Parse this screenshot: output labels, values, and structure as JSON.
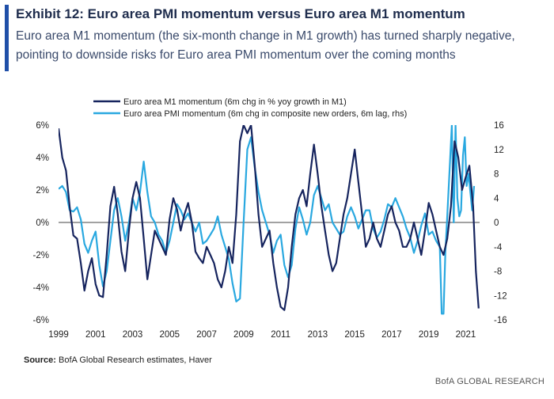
{
  "header": {
    "title": "Exhibit 12: Euro area PMI momentum versus Euro area M1 momentum",
    "subtitle": "Euro area M1 momentum (the six-month change in M1 growth) has turned sharply negative, pointing to downside risks for Euro area PMI momentum over the coming months",
    "accent_color": "#1f4fa8"
  },
  "footer": {
    "source_label": "Source:",
    "source_text": "BofA Global Research estimates, Haver",
    "brand": "BofA GLOBAL RESEARCH"
  },
  "chart_data": {
    "type": "line",
    "x_tick_labels": [
      "1999",
      "2001",
      "2003",
      "2005",
      "2007",
      "2009",
      "2011",
      "2013",
      "2015",
      "2017",
      "2019",
      "2021"
    ],
    "y_left": {
      "ticks": [
        -6,
        -4,
        -2,
        0,
        2,
        4,
        6
      ],
      "tick_labels": [
        "-6%",
        "-4%",
        "-2%",
        "0%",
        "2%",
        "4%",
        "6%"
      ],
      "range": [
        -6,
        6
      ]
    },
    "y_right": {
      "ticks": [
        -16,
        -12,
        -8,
        -4,
        0,
        4,
        8,
        12,
        16
      ],
      "tick_labels": [
        "-16",
        "-12",
        "-8",
        "-4",
        "0",
        "4",
        "8",
        "12",
        "16"
      ],
      "range": [
        -16,
        16
      ]
    },
    "x_range": [
      1999,
      2021.75
    ],
    "series": [
      {
        "name": "Euro area M1 momentum  (6m chg in % yoy growth  in M1)",
        "axis": "left",
        "color": "#16245e",
        "points": [
          [
            1999.0,
            5.8
          ],
          [
            1999.2,
            4.0
          ],
          [
            1999.4,
            3.2
          ],
          [
            1999.6,
            1.0
          ],
          [
            1999.8,
            -0.8
          ],
          [
            2000.0,
            -1.0
          ],
          [
            2000.2,
            -2.5
          ],
          [
            2000.4,
            -4.2
          ],
          [
            2000.6,
            -3.0
          ],
          [
            2000.8,
            -2.2
          ],
          [
            2001.0,
            -3.8
          ],
          [
            2001.2,
            -4.5
          ],
          [
            2001.4,
            -4.6
          ],
          [
            2001.6,
            -2.0
          ],
          [
            2001.8,
            1.0
          ],
          [
            2002.0,
            2.2
          ],
          [
            2002.2,
            0.5
          ],
          [
            2002.4,
            -1.8
          ],
          [
            2002.6,
            -3.0
          ],
          [
            2002.8,
            -0.5
          ],
          [
            2003.0,
            1.5
          ],
          [
            2003.2,
            2.5
          ],
          [
            2003.4,
            1.5
          ],
          [
            2003.6,
            -1.0
          ],
          [
            2003.8,
            -3.5
          ],
          [
            2004.0,
            -2.0
          ],
          [
            2004.2,
            -0.5
          ],
          [
            2004.4,
            -1.0
          ],
          [
            2004.6,
            -1.5
          ],
          [
            2004.8,
            -2.0
          ],
          [
            2005.0,
            0.2
          ],
          [
            2005.2,
            1.5
          ],
          [
            2005.4,
            0.8
          ],
          [
            2005.6,
            -0.5
          ],
          [
            2005.8,
            0.5
          ],
          [
            2006.0,
            1.2
          ],
          [
            2006.2,
            0.0
          ],
          [
            2006.4,
            -1.8
          ],
          [
            2006.6,
            -2.2
          ],
          [
            2006.8,
            -2.5
          ],
          [
            2007.0,
            -1.5
          ],
          [
            2007.2,
            -2.0
          ],
          [
            2007.4,
            -2.5
          ],
          [
            2007.6,
            -3.5
          ],
          [
            2007.8,
            -4.0
          ],
          [
            2008.0,
            -3.0
          ],
          [
            2008.2,
            -1.5
          ],
          [
            2008.4,
            -2.5
          ],
          [
            2008.6,
            0.5
          ],
          [
            2008.8,
            5.0
          ],
          [
            2009.0,
            6.0
          ],
          [
            2009.2,
            5.5
          ],
          [
            2009.4,
            6.0
          ],
          [
            2009.6,
            3.5
          ],
          [
            2009.8,
            0.5
          ],
          [
            2010.0,
            -1.5
          ],
          [
            2010.2,
            -1.0
          ],
          [
            2010.4,
            -0.5
          ],
          [
            2010.6,
            -2.5
          ],
          [
            2010.8,
            -4.0
          ],
          [
            2011.0,
            -5.2
          ],
          [
            2011.2,
            -5.4
          ],
          [
            2011.4,
            -4.0
          ],
          [
            2011.6,
            -1.5
          ],
          [
            2011.8,
            0.5
          ],
          [
            2012.0,
            1.5
          ],
          [
            2012.2,
            2.0
          ],
          [
            2012.4,
            1.0
          ],
          [
            2012.6,
            3.0
          ],
          [
            2012.8,
            4.8
          ],
          [
            2013.0,
            3.0
          ],
          [
            2013.2,
            1.0
          ],
          [
            2013.4,
            -0.5
          ],
          [
            2013.6,
            -2.0
          ],
          [
            2013.8,
            -3.0
          ],
          [
            2014.0,
            -2.5
          ],
          [
            2014.2,
            -1.0
          ],
          [
            2014.4,
            0.5
          ],
          [
            2014.6,
            1.5
          ],
          [
            2014.8,
            3.0
          ],
          [
            2015.0,
            4.5
          ],
          [
            2015.2,
            2.5
          ],
          [
            2015.4,
            0.5
          ],
          [
            2015.6,
            -1.5
          ],
          [
            2015.8,
            -1.0
          ],
          [
            2016.0,
            0.0
          ],
          [
            2016.2,
            -1.0
          ],
          [
            2016.4,
            -1.5
          ],
          [
            2016.6,
            -0.5
          ],
          [
            2016.8,
            0.5
          ],
          [
            2017.0,
            1.0
          ],
          [
            2017.2,
            0.0
          ],
          [
            2017.4,
            -0.5
          ],
          [
            2017.6,
            -1.5
          ],
          [
            2017.8,
            -1.5
          ],
          [
            2018.0,
            -1.0
          ],
          [
            2018.2,
            0.0
          ],
          [
            2018.4,
            -1.0
          ],
          [
            2018.6,
            -2.0
          ],
          [
            2018.8,
            -0.5
          ],
          [
            2019.0,
            1.2
          ],
          [
            2019.2,
            0.5
          ],
          [
            2019.4,
            -0.5
          ],
          [
            2019.6,
            -1.5
          ],
          [
            2019.8,
            -2.0
          ],
          [
            2020.0,
            -1.0
          ],
          [
            2020.2,
            1.0
          ],
          [
            2020.4,
            5.0
          ],
          [
            2020.6,
            4.0
          ],
          [
            2020.8,
            2.0
          ],
          [
            2021.0,
            2.8
          ],
          [
            2021.2,
            3.5
          ],
          [
            2021.4,
            1.0
          ],
          [
            2021.55,
            -3.0
          ],
          [
            2021.7,
            -5.3
          ]
        ]
      },
      {
        "name": "Euro area PMI momentum  (6m chg in composite  new orders, 6m lag, rhs)",
        "axis": "right",
        "color": "#29a8e0",
        "points": [
          [
            1999.0,
            5.5
          ],
          [
            1999.2,
            6.0
          ],
          [
            1999.4,
            5.0
          ],
          [
            1999.6,
            2.0
          ],
          [
            1999.8,
            1.8
          ],
          [
            2000.0,
            2.5
          ],
          [
            2000.2,
            0.5
          ],
          [
            2000.4,
            -3.5
          ],
          [
            2000.6,
            -5.0
          ],
          [
            2000.8,
            -3.0
          ],
          [
            2001.0,
            -1.5
          ],
          [
            2001.2,
            -7.0
          ],
          [
            2001.4,
            -10.5
          ],
          [
            2001.6,
            -8.0
          ],
          [
            2001.8,
            -3.0
          ],
          [
            2002.0,
            2.0
          ],
          [
            2002.2,
            4.0
          ],
          [
            2002.4,
            1.0
          ],
          [
            2002.6,
            -3.0
          ],
          [
            2002.8,
            0.0
          ],
          [
            2003.0,
            4.0
          ],
          [
            2003.2,
            2.0
          ],
          [
            2003.4,
            5.0
          ],
          [
            2003.6,
            10.0
          ],
          [
            2003.8,
            5.0
          ],
          [
            2004.0,
            1.0
          ],
          [
            2004.2,
            0.0
          ],
          [
            2004.4,
            -2.0
          ],
          [
            2004.6,
            -3.0
          ],
          [
            2004.8,
            -5.0
          ],
          [
            2005.0,
            -3.0
          ],
          [
            2005.2,
            0.0
          ],
          [
            2005.4,
            3.0
          ],
          [
            2005.6,
            2.0
          ],
          [
            2005.8,
            0.5
          ],
          [
            2006.0,
            1.5
          ],
          [
            2006.2,
            0.0
          ],
          [
            2006.4,
            -1.5
          ],
          [
            2006.6,
            0.0
          ],
          [
            2006.8,
            -3.5
          ],
          [
            2007.0,
            -3.0
          ],
          [
            2007.2,
            -2.0
          ],
          [
            2007.4,
            -1.0
          ],
          [
            2007.6,
            1.0
          ],
          [
            2007.8,
            -2.0
          ],
          [
            2008.0,
            -4.0
          ],
          [
            2008.2,
            -6.0
          ],
          [
            2008.4,
            -10.0
          ],
          [
            2008.6,
            -13.0
          ],
          [
            2008.8,
            -12.5
          ],
          [
            2009.0,
            0.0
          ],
          [
            2009.2,
            12.0
          ],
          [
            2009.4,
            14.0
          ],
          [
            2009.6,
            9.0
          ],
          [
            2009.8,
            5.0
          ],
          [
            2010.0,
            2.0
          ],
          [
            2010.2,
            0.0
          ],
          [
            2010.4,
            -2.0
          ],
          [
            2010.6,
            -5.0
          ],
          [
            2010.8,
            -3.0
          ],
          [
            2011.0,
            -2.0
          ],
          [
            2011.2,
            -7.0
          ],
          [
            2011.4,
            -9.0
          ],
          [
            2011.6,
            -7.0
          ],
          [
            2011.8,
            -1.0
          ],
          [
            2012.0,
            2.5
          ],
          [
            2012.2,
            0.5
          ],
          [
            2012.4,
            -2.0
          ],
          [
            2012.6,
            0.0
          ],
          [
            2012.8,
            4.5
          ],
          [
            2013.0,
            6.0
          ],
          [
            2013.2,
            4.0
          ],
          [
            2013.4,
            2.0
          ],
          [
            2013.6,
            3.0
          ],
          [
            2013.8,
            0.0
          ],
          [
            2014.0,
            -1.0
          ],
          [
            2014.2,
            -2.0
          ],
          [
            2014.4,
            -1.5
          ],
          [
            2014.6,
            1.0
          ],
          [
            2014.8,
            2.5
          ],
          [
            2015.0,
            1.0
          ],
          [
            2015.2,
            -1.0
          ],
          [
            2015.4,
            0.5
          ],
          [
            2015.6,
            2.0
          ],
          [
            2015.8,
            2.0
          ],
          [
            2016.0,
            -1.0
          ],
          [
            2016.2,
            -2.5
          ],
          [
            2016.4,
            -1.5
          ],
          [
            2016.6,
            0.5
          ],
          [
            2016.8,
            3.0
          ],
          [
            2017.0,
            2.5
          ],
          [
            2017.2,
            4.0
          ],
          [
            2017.4,
            2.5
          ],
          [
            2017.6,
            1.0
          ],
          [
            2017.8,
            -1.0
          ],
          [
            2018.0,
            -2.5
          ],
          [
            2018.2,
            -5.0
          ],
          [
            2018.4,
            -3.0
          ],
          [
            2018.6,
            -0.5
          ],
          [
            2018.8,
            1.5
          ],
          [
            2019.0,
            -2.0
          ],
          [
            2019.2,
            -1.5
          ],
          [
            2019.4,
            -3.0
          ],
          [
            2019.6,
            -4.0
          ],
          [
            2019.7,
            -15.0
          ],
          [
            2019.8,
            -15.0
          ],
          [
            2019.9,
            -5.0
          ],
          [
            2020.0,
            1.0
          ],
          [
            2020.15,
            10.0
          ],
          [
            2020.25,
            16.0
          ],
          [
            2020.35,
            0.0
          ],
          [
            2020.45,
            16.0
          ],
          [
            2020.55,
            4.0
          ],
          [
            2020.65,
            1.0
          ],
          [
            2020.75,
            2.0
          ],
          [
            2020.85,
            11.0
          ],
          [
            2020.95,
            14.0
          ],
          [
            2021.05,
            6.0
          ],
          [
            2021.15,
            8.0
          ],
          [
            2021.25,
            5.0
          ],
          [
            2021.35,
            2.0
          ],
          [
            2021.45,
            6.0
          ]
        ]
      }
    ]
  }
}
